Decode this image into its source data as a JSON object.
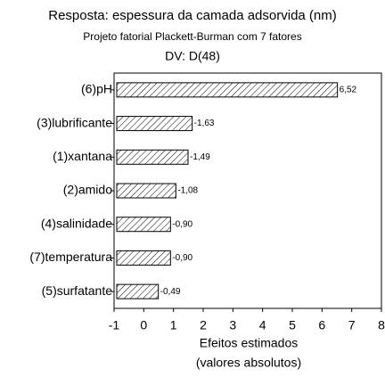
{
  "chart_data": {
    "type": "bar",
    "orientation": "horizontal",
    "title": "Resposta: espessura da camada adsorvida (nm)",
    "subtitle": "Projeto fatorial Plackett-Burman com 7 fatores",
    "annotation": "DV: D(48)",
    "categories": [
      "(6)pH",
      "(3)lubrificante",
      "(1)xantana",
      "(2)amido",
      "(4)salinidade",
      "(7)temperatura",
      "(5)surfatante"
    ],
    "values": [
      6.52,
      1.63,
      1.49,
      1.08,
      0.9,
      0.9,
      0.49
    ],
    "value_labels": [
      "6,52",
      "-1,63",
      "-1,49",
      "-1,08",
      "-0,90",
      "-0,90",
      "-0,49"
    ],
    "xlim": [
      -1,
      8
    ],
    "xticks": [
      -1,
      0,
      1,
      2,
      3,
      4,
      5,
      6,
      7,
      8
    ],
    "xlabel": [
      "Efeitos estimados",
      "(valores absolutos)"
    ],
    "color": "#000000"
  }
}
